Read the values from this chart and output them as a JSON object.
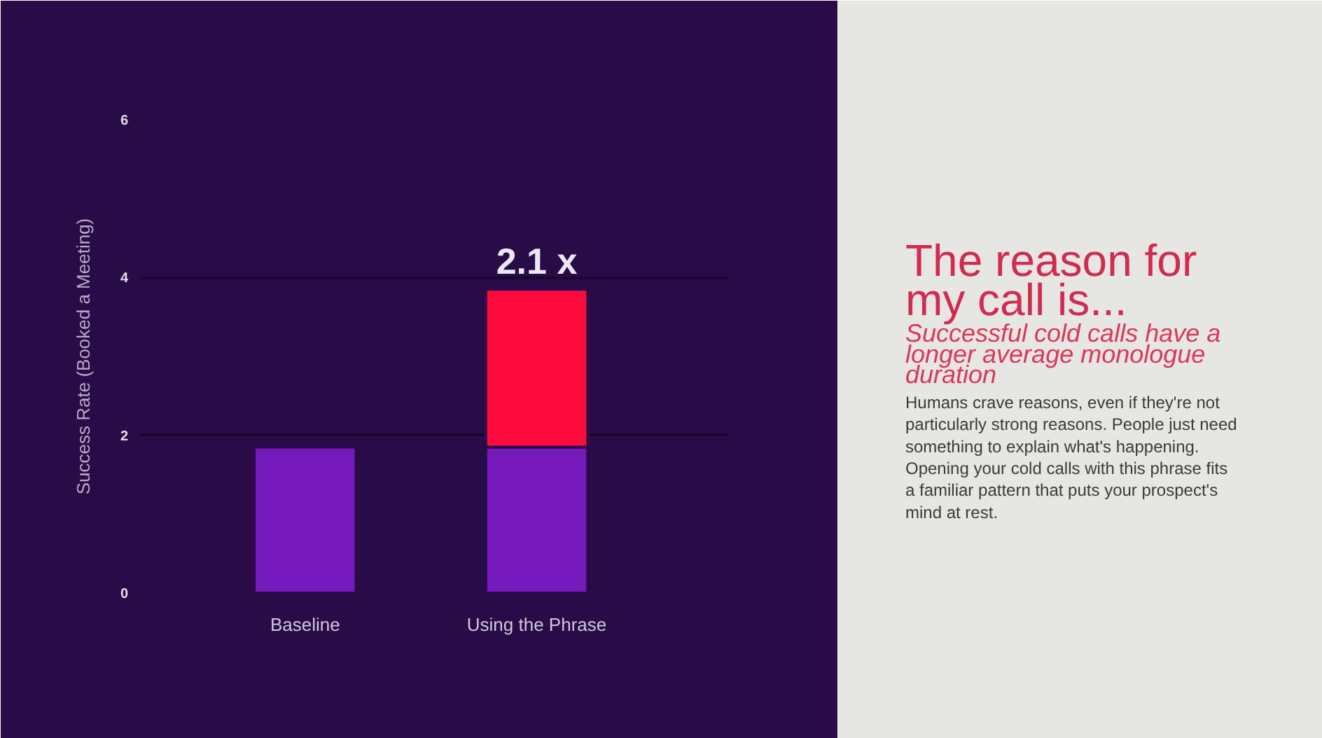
{
  "chart_data": {
    "type": "bar",
    "title": "The reason for my call is...",
    "subtitle": "Successful cold calls have a longer average monologue duration",
    "ylabel": "Success Rate (Booked a Meeting)",
    "categories": [
      "Baseline",
      "Using the Phrase"
    ],
    "stacked": true,
    "series": [
      {
        "color": "#7519bd",
        "values": [
          1.85,
          1.85
        ]
      },
      {
        "color": "#ff0a3c",
        "values": [
          null,
          2.0
        ]
      }
    ],
    "ylim": [
      0,
      6
    ],
    "yticks": [
      0,
      2,
      4,
      6
    ],
    "grid": "y",
    "annotations": [
      {
        "text": "2.1 x",
        "x": "Using the Phrase",
        "y": 3.85
      },
      "Humans crave reasons, even if they're not particularly strong reasons. People just need something to explain what's happening. Opening your cold calls with this phrase fits a familiar pattern that puts your prospect's mind at rest."
    ]
  }
}
